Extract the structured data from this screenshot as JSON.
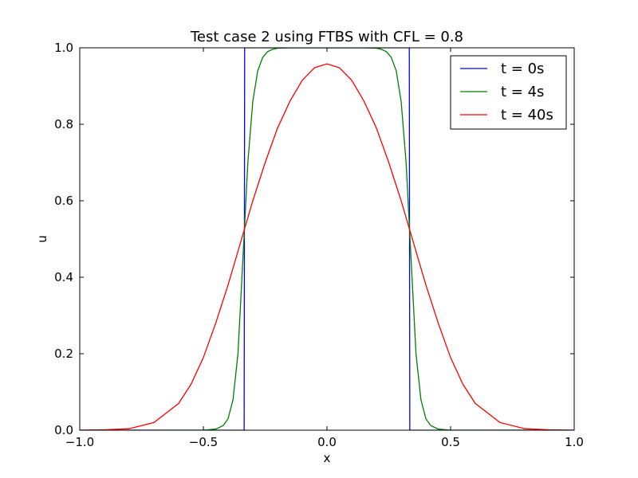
{
  "chart_data": {
    "type": "line",
    "title": "Test case 2 using FTBS with CFL = 0.8",
    "xlabel": "x",
    "ylabel": "u",
    "xlim": [
      -1.0,
      1.0
    ],
    "ylim": [
      0.0,
      1.0
    ],
    "xticks": [
      -1.0,
      -0.5,
      0.0,
      0.5,
      1.0
    ],
    "xtick_labels": [
      "−1.0",
      "−0.5",
      "0.0",
      "0.5",
      "1.0"
    ],
    "yticks": [
      0.0,
      0.2,
      0.4,
      0.6,
      0.8,
      1.0
    ],
    "ytick_labels": [
      "0.0",
      "0.2",
      "0.4",
      "0.6",
      "0.8",
      "1.0"
    ],
    "grid": false,
    "legend_position": "top-right",
    "series": [
      {
        "name": "t = 0s",
        "color": "#0000ff",
        "x": [
          -1.0,
          -0.335,
          -0.333,
          0.333,
          0.335,
          1.0
        ],
        "y": [
          0.0,
          0.0,
          1.0,
          1.0,
          0.0,
          0.0
        ]
      },
      {
        "name": "t = 4s",
        "color": "#008000",
        "x": [
          -1.0,
          -0.6,
          -0.5,
          -0.45,
          -0.42,
          -0.4,
          -0.38,
          -0.36,
          -0.34,
          -0.32,
          -0.3,
          -0.28,
          -0.26,
          -0.24,
          -0.22,
          -0.2,
          -0.15,
          -0.1,
          0.0,
          0.1,
          0.15,
          0.2,
          0.22,
          0.24,
          0.26,
          0.28,
          0.3,
          0.32,
          0.34,
          0.36,
          0.38,
          0.4,
          0.42,
          0.45,
          0.5,
          0.6,
          1.0
        ],
        "y": [
          0.0,
          0.0,
          0.0,
          0.003,
          0.012,
          0.03,
          0.08,
          0.2,
          0.45,
          0.7,
          0.86,
          0.94,
          0.975,
          0.99,
          0.996,
          0.999,
          1.0,
          1.0,
          1.0,
          1.0,
          1.0,
          0.999,
          0.996,
          0.99,
          0.975,
          0.94,
          0.86,
          0.7,
          0.45,
          0.2,
          0.08,
          0.03,
          0.012,
          0.003,
          0.0,
          0.0,
          0.0
        ]
      },
      {
        "name": "t = 40s",
        "color": "#ff0000",
        "x": [
          -1.0,
          -0.9,
          -0.8,
          -0.7,
          -0.6,
          -0.55,
          -0.5,
          -0.45,
          -0.4,
          -0.35,
          -0.3,
          -0.25,
          -0.2,
          -0.15,
          -0.1,
          -0.05,
          0.0,
          0.05,
          0.1,
          0.15,
          0.2,
          0.25,
          0.3,
          0.35,
          0.4,
          0.45,
          0.5,
          0.55,
          0.6,
          0.7,
          0.8,
          0.9,
          1.0
        ],
        "y": [
          0.0,
          0.001,
          0.004,
          0.02,
          0.07,
          0.12,
          0.19,
          0.28,
          0.38,
          0.49,
          0.6,
          0.7,
          0.79,
          0.86,
          0.915,
          0.948,
          0.958,
          0.948,
          0.915,
          0.86,
          0.79,
          0.7,
          0.6,
          0.49,
          0.38,
          0.28,
          0.19,
          0.12,
          0.07,
          0.02,
          0.004,
          0.001,
          0.0
        ]
      }
    ]
  }
}
